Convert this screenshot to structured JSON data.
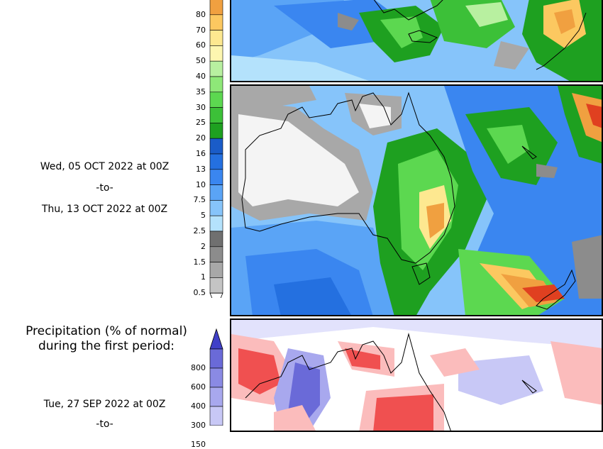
{
  "precip_scale": {
    "levels": [
      {
        "label": "80",
        "color": "#f0a040"
      },
      {
        "label": "70",
        "color": "#fcc860"
      },
      {
        "label": "60",
        "color": "#fde890"
      },
      {
        "label": "50",
        "color": "#fdf6b0"
      },
      {
        "label": "40",
        "color": "#b8f0a0"
      },
      {
        "label": "35",
        "color": "#8ee878"
      },
      {
        "label": "30",
        "color": "#5cd850"
      },
      {
        "label": "25",
        "color": "#3cc038"
      },
      {
        "label": "20",
        "color": "#1ea020"
      },
      {
        "label": "16",
        "color": "#1a5cc8"
      },
      {
        "label": "13",
        "color": "#2470e0"
      },
      {
        "label": "10",
        "color": "#3a86f0"
      },
      {
        "label": "7.5",
        "color": "#5aa4f6"
      },
      {
        "label": "5",
        "color": "#86c4fa"
      },
      {
        "label": "2.5",
        "color": "#b4e2fc"
      },
      {
        "label": "2",
        "color": "#707070"
      },
      {
        "label": "1.5",
        "color": "#8c8c8c"
      },
      {
        "label": "1",
        "color": "#a8a8a8"
      },
      {
        "label": "0.5",
        "color": "#c4c4c4"
      }
    ]
  },
  "period_total": {
    "date_from": "Wed, 05 OCT 2022 at 00Z",
    "separator": "-to-",
    "date_to": "Thu, 13 OCT 2022 at 00Z"
  },
  "percent_normal": {
    "title_line1": "Precipitation (% of normal)",
    "title_line2": "during the first period:",
    "levels": [
      {
        "label": "800",
        "color": "#6a6ad8"
      },
      {
        "label": "600",
        "color": "#8a8ae4"
      },
      {
        "label": "400",
        "color": "#a8a8ee"
      },
      {
        "label": "300",
        "color": "#c8c8f6"
      },
      {
        "label": "150",
        "color": "#e2e2fc"
      }
    ],
    "date_from": "Tue, 27 SEP 2022 at 00Z",
    "separator": "-to-"
  }
}
